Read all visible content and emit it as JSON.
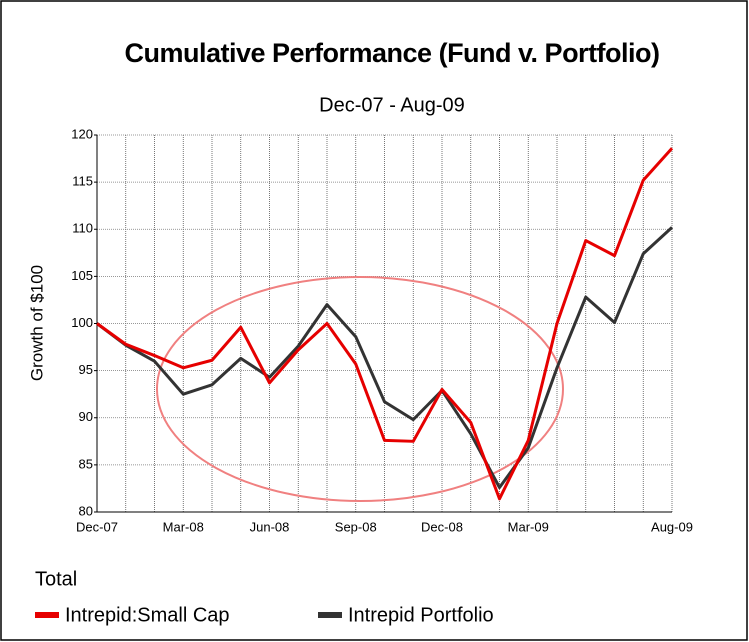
{
  "chart_data": {
    "type": "line",
    "title": "Cumulative Performance (Fund v. Portfolio)",
    "subtitle": "Dec-07 - Aug-09",
    "y_label": "Growth of $100",
    "legend_title": "Total",
    "categories": [
      "Dec-07",
      null,
      null,
      "Mar-08",
      null,
      null,
      "Jun-08",
      null,
      null,
      "Sep-08",
      null,
      null,
      "Dec-08",
      null,
      null,
      "Mar-09",
      null,
      null,
      null,
      null,
      "Aug-09"
    ],
    "series": [
      {
        "name": "Intrepid:Small Cap",
        "color": "#e60000",
        "values": [
          100,
          97.8,
          96.6,
          95.3,
          96.1,
          99.6,
          93.7,
          97.2,
          100,
          95.7,
          87.6,
          87.5,
          93,
          89.5,
          81.4,
          87.6,
          100,
          108.8,
          107.2,
          115.2,
          118.6
        ]
      },
      {
        "name": "Intrepid Portfolio",
        "color": "#333333",
        "values": [
          100,
          97.7,
          96,
          92.5,
          93.5,
          96.3,
          94.3,
          97.6,
          102,
          98.6,
          91.7,
          89.8,
          92.9,
          88.3,
          82.6,
          86.8,
          95.3,
          102.8,
          100.1,
          107.4,
          110.2
        ]
      }
    ],
    "ylim": [
      80,
      120
    ],
    "yticks": [
      80,
      85,
      90,
      95,
      100,
      105,
      110,
      115,
      120
    ],
    "grid": true
  }
}
